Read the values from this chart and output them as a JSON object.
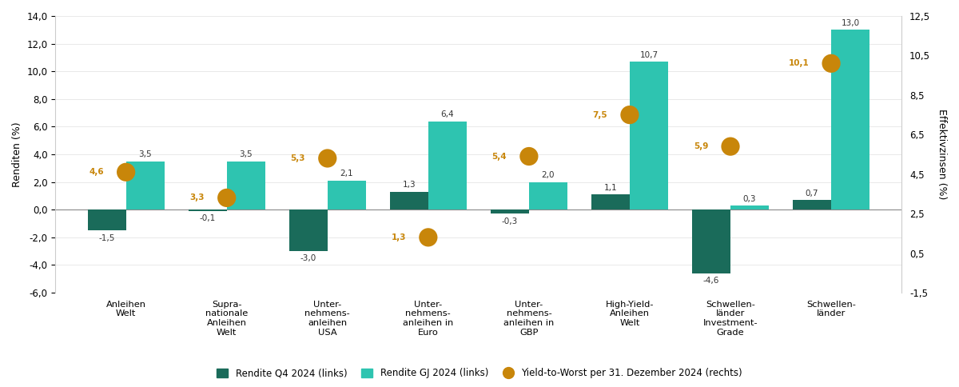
{
  "categories": [
    "Anleihen\nWelt",
    "Supra-\nnationale\nAnleihen\nWelt",
    "Unter-\nnehmens-\nanleihen\nUSA",
    "Unter-\nnehmens-\nanleihen in\nEuro",
    "Unter-\nnehmens-\nanleihen in\nGBP",
    "High-Yield-\nAnleihen\nWelt",
    "Schwellen-\nländer\nInvestment-\nGrade",
    "Schwellen-\nländer"
  ],
  "q4_values": [
    -1.5,
    -0.1,
    -3.0,
    1.3,
    -0.3,
    1.1,
    -4.6,
    0.7
  ],
  "gj_values": [
    3.5,
    3.5,
    2.1,
    6.4,
    2.0,
    10.7,
    0.3,
    13.0
  ],
  "ytw_values": [
    4.6,
    3.3,
    5.3,
    1.3,
    5.4,
    7.5,
    5.9,
    10.1
  ],
  "q4_color": "#1a6b5a",
  "gj_color": "#2ec4b0",
  "ytw_color": "#c8860a",
  "q4_label": "Rendite Q4 2024 (links)",
  "gj_label": "Rendite GJ 2024 (links)",
  "ytw_label": "Yield-to-Worst per 31. Dezember 2024 (rechts)",
  "ylabel_left": "Renditen (%)",
  "ylabel_right": "Effektivzinsen (%)",
  "ylim_left": [
    -6.0,
    14.0
  ],
  "ylim_right": [
    -1.5,
    12.5
  ],
  "yticks_left": [
    -6.0,
    -4.0,
    -2.0,
    0.0,
    2.0,
    4.0,
    6.0,
    8.0,
    10.0,
    12.0,
    14.0
  ],
  "yticks_right": [
    -1.5,
    0.5,
    2.5,
    4.5,
    6.5,
    8.5,
    10.5,
    12.5
  ],
  "background_color": "#ffffff",
  "bar_width": 0.38,
  "dot_size": 280
}
